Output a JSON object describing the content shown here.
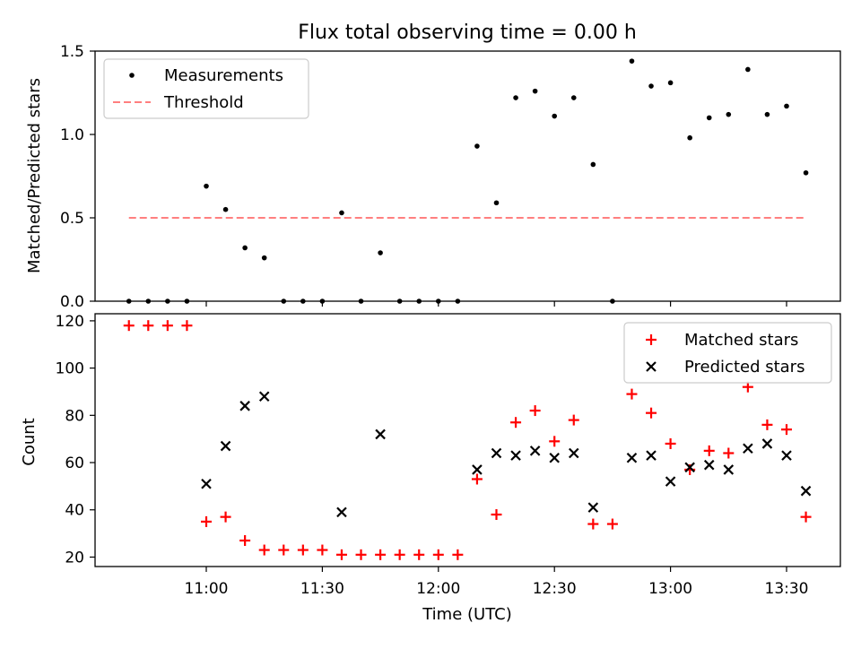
{
  "title": "Flux total observing time = 0.00 h",
  "chart_data": [
    {
      "type": "scatter",
      "ylabel": "Matched/Predicted stars",
      "xlabel": "",
      "ylim": [
        0,
        1.5
      ],
      "yticks": [
        0.0,
        0.5,
        1.0,
        1.5
      ],
      "ytick_labels": [
        "0.0",
        "0.5",
        "1.0",
        "1.5"
      ],
      "legend": "top-left",
      "legend_entries": [
        "Measurements",
        "Threshold"
      ],
      "threshold": {
        "value": 0.5,
        "x_start": "10:40",
        "x_end": "13:35",
        "color": "#ff7f7f"
      },
      "series": [
        {
          "name": "Measurements",
          "marker": "dot",
          "color": "#000000",
          "x": [
            "10:40",
            "10:45",
            "10:50",
            "10:55",
            "11:00",
            "11:05",
            "11:10",
            "11:15",
            "11:20",
            "11:25",
            "11:30",
            "11:35",
            "11:40",
            "11:45",
            "11:50",
            "11:55",
            "12:00",
            "12:05",
            "12:10",
            "12:15",
            "12:20",
            "12:25",
            "12:30",
            "12:35",
            "12:40",
            "12:45",
            "12:50",
            "12:55",
            "13:00",
            "13:05",
            "13:10",
            "13:15",
            "13:20",
            "13:25",
            "13:30",
            "13:35"
          ],
          "y": [
            0,
            0,
            0,
            0,
            0.69,
            0.55,
            0.32,
            0.26,
            0,
            0,
            0,
            0.53,
            0,
            0.29,
            0,
            0,
            0,
            0,
            0.93,
            0.59,
            1.22,
            1.26,
            1.11,
            1.22,
            0.82,
            0,
            1.44,
            1.29,
            1.31,
            0.98,
            1.1,
            1.12,
            1.39,
            1.12,
            1.17,
            0.77
          ]
        }
      ]
    },
    {
      "type": "scatter",
      "ylabel": "Count",
      "xlabel": "Time (UTC)",
      "ylim": [
        16,
        123
      ],
      "yticks": [
        20,
        40,
        60,
        80,
        100,
        120
      ],
      "ytick_labels": [
        "20",
        "40",
        "60",
        "80",
        "100",
        "120"
      ],
      "xticks": [
        "11:00",
        "11:30",
        "12:00",
        "12:30",
        "13:00",
        "13:30"
      ],
      "legend": "top-right",
      "legend_entries": [
        "Matched stars",
        "Predicted stars"
      ],
      "series": [
        {
          "name": "Matched stars",
          "marker": "plus",
          "color": "#ff0000",
          "x": [
            "10:40",
            "10:45",
            "10:50",
            "10:55",
            "11:00",
            "11:05",
            "11:10",
            "11:15",
            "11:20",
            "11:25",
            "11:30",
            "11:35",
            "11:40",
            "11:45",
            "11:50",
            "11:55",
            "12:00",
            "12:05",
            "12:10",
            "12:15",
            "12:20",
            "12:25",
            "12:30",
            "12:35",
            "12:40",
            "12:45",
            "12:50",
            "12:55",
            "13:00",
            "13:05",
            "13:10",
            "13:15",
            "13:20",
            "13:25",
            "13:30",
            "13:35"
          ],
          "y": [
            118,
            118,
            118,
            118,
            35,
            37,
            27,
            23,
            23,
            23,
            23,
            21,
            21,
            21,
            21,
            21,
            21,
            21,
            53,
            38,
            77,
            82,
            69,
            78,
            34,
            34,
            89,
            81,
            68,
            57,
            65,
            64,
            92,
            76,
            74,
            37
          ]
        },
        {
          "name": "Predicted stars",
          "marker": "x",
          "color": "#000000",
          "x": [
            "11:00",
            "11:05",
            "11:10",
            "11:15",
            "11:35",
            "11:45",
            "12:10",
            "12:15",
            "12:20",
            "12:25",
            "12:30",
            "12:35",
            "12:40",
            "12:50",
            "12:55",
            "13:00",
            "13:05",
            "13:10",
            "13:15",
            "13:20",
            "13:25",
            "13:30",
            "13:35"
          ],
          "y": [
            51,
            67,
            84,
            88,
            39,
            72,
            57,
            64,
            63,
            65,
            62,
            64,
            41,
            62,
            63,
            52,
            58,
            59,
            57,
            66,
            68,
            63,
            48
          ]
        }
      ]
    }
  ]
}
